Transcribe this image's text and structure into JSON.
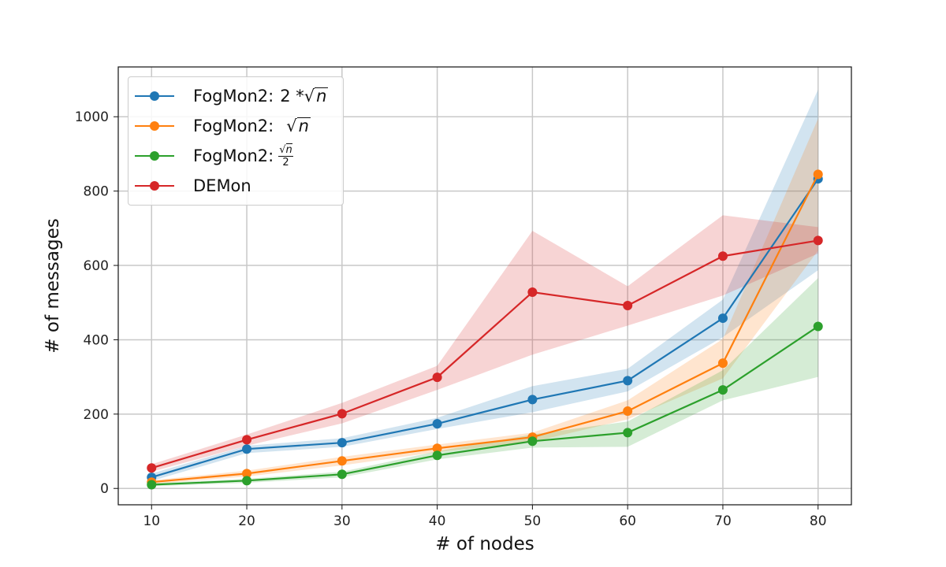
{
  "chart_data": {
    "type": "line",
    "xlabel": "# of nodes",
    "ylabel": "# of messages",
    "x": [
      10,
      20,
      30,
      40,
      50,
      60,
      70,
      80
    ],
    "xticks": [
      10,
      20,
      30,
      40,
      50,
      60,
      70,
      80
    ],
    "yticks": [
      0,
      200,
      400,
      600,
      800,
      1000
    ],
    "xlim": [
      6.5,
      83.5
    ],
    "ylim": [
      -44,
      1134
    ],
    "grid": true,
    "legend_placement": "top-left",
    "series": [
      {
        "name": "FogMon2: 2 * √n",
        "prefix": "FogMon2:",
        "math": "2 * ",
        "sqrt": "n",
        "color": "#1f77b4",
        "values": [
          30,
          106,
          123,
          174,
          239,
          290,
          458,
          833
        ],
        "lower": [
          20,
          95,
          112,
          160,
          205,
          261,
          407,
          587
        ],
        "upper": [
          40,
          115,
          135,
          190,
          275,
          322,
          508,
          1073
        ]
      },
      {
        "name": "FogMon2: √n",
        "prefix": "FogMon2:",
        "math": "",
        "sqrt": "n",
        "color": "#ff7f0e",
        "values": [
          17,
          40,
          74,
          108,
          138,
          208,
          337,
          845
        ],
        "lower": [
          12,
          32,
          62,
          98,
          125,
          186,
          296,
          640
        ],
        "upper": [
          22,
          48,
          85,
          118,
          150,
          237,
          402,
          995
        ]
      },
      {
        "name": "FogMon2: √n/2",
        "prefix": "FogMon2:",
        "frac_num": "n",
        "frac_den": "2",
        "color": "#2ca02c",
        "values": [
          10,
          21,
          38,
          89,
          127,
          150,
          265,
          436
        ],
        "lower": [
          6,
          15,
          30,
          78,
          110,
          112,
          237,
          300
        ],
        "upper": [
          14,
          26,
          45,
          100,
          145,
          180,
          318,
          566
        ]
      },
      {
        "name": "DEMon",
        "prefix": "DEMon",
        "color": "#d62728",
        "values": [
          55,
          131,
          201,
          299,
          528,
          492,
          625,
          667
        ],
        "lower": [
          45,
          115,
          175,
          265,
          360,
          438,
          519,
          632
        ],
        "upper": [
          65,
          145,
          230,
          330,
          693,
          544,
          735,
          703
        ]
      }
    ]
  }
}
